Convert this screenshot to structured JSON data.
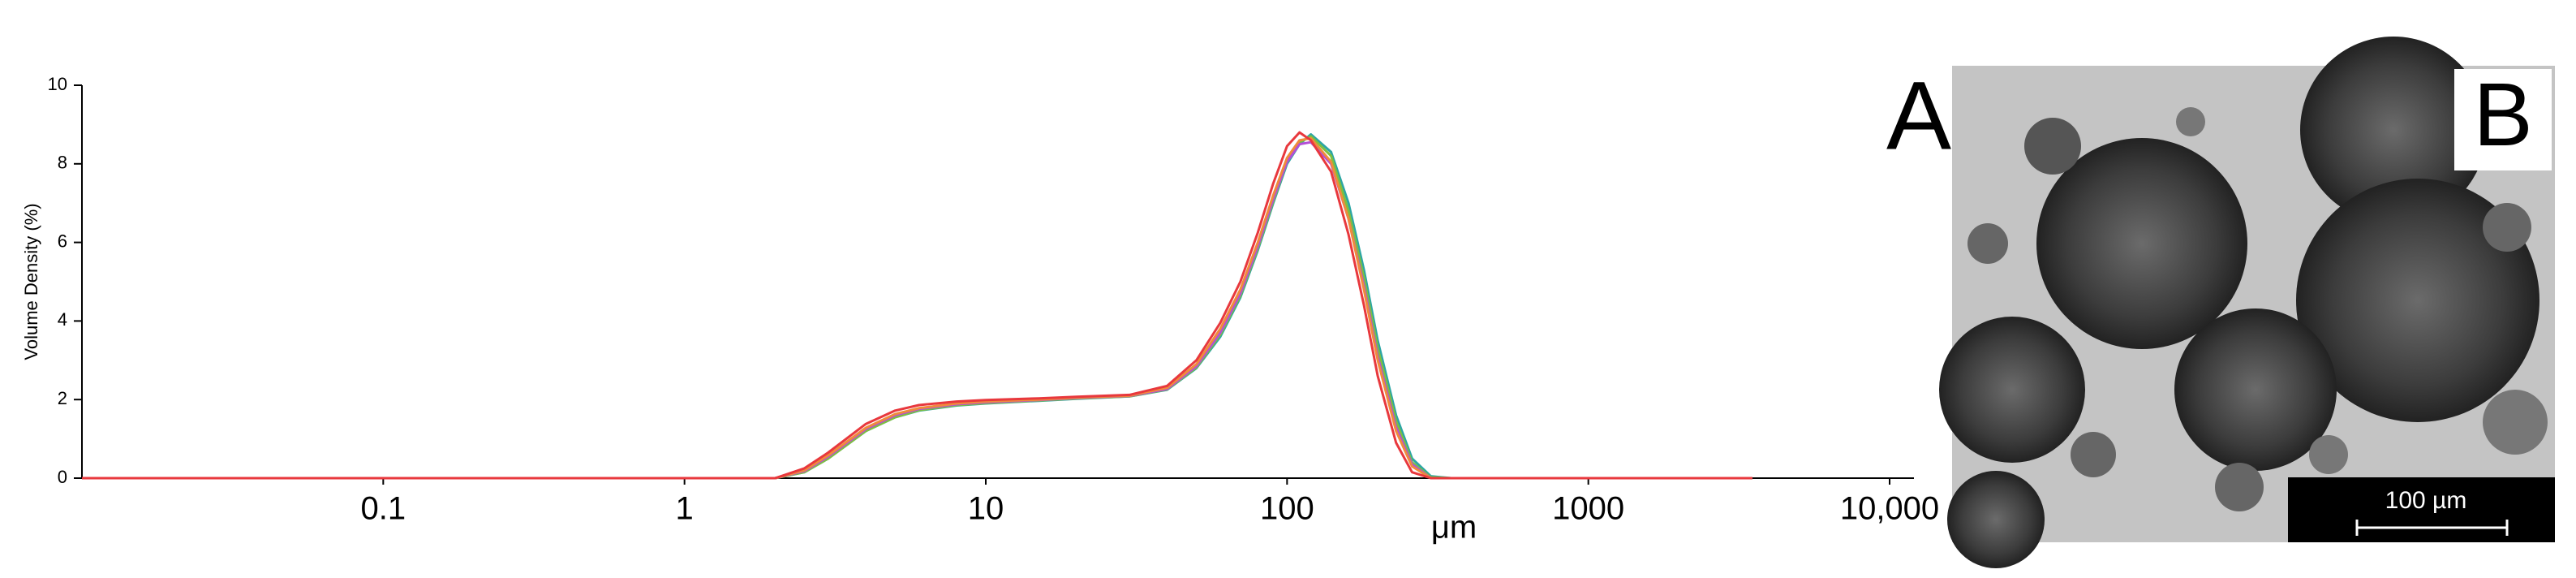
{
  "chart_data": {
    "type": "line",
    "x_label": "μm",
    "y_label": "Volume Density (%)",
    "log_x": true,
    "xlim": [
      0.01,
      10000
    ],
    "xticks": [
      0.1,
      1,
      10,
      100,
      1000,
      {
        "value": 10000,
        "label": "10,000"
      }
    ],
    "ylim": [
      0,
      10
    ],
    "yticks": [
      0,
      2,
      4,
      6,
      8,
      10
    ],
    "x": [
      0.01,
      1,
      2,
      2.5,
      3,
      4,
      5,
      6,
      8,
      10,
      15,
      20,
      30,
      40,
      50,
      60,
      70,
      80,
      90,
      100,
      110,
      120,
      140,
      160,
      180,
      200,
      230,
      260,
      300,
      350,
      1000,
      3500
    ],
    "series": [
      {
        "color": "#2ca6a4",
        "values": [
          0,
          0,
          0,
          0.15,
          0.5,
          1.2,
          1.55,
          1.72,
          1.85,
          1.9,
          1.97,
          2.02,
          2.08,
          2.25,
          2.8,
          3.6,
          4.6,
          5.8,
          7.0,
          8.0,
          8.5,
          8.75,
          8.3,
          7.0,
          5.3,
          3.5,
          1.6,
          0.5,
          0.05,
          0,
          0,
          0
        ]
      },
      {
        "color": "#7fbf3f",
        "values": [
          0,
          0,
          0,
          0.15,
          0.5,
          1.2,
          1.55,
          1.73,
          1.86,
          1.91,
          1.98,
          2.03,
          2.08,
          2.26,
          2.82,
          3.65,
          4.65,
          5.85,
          7.05,
          8.05,
          8.55,
          8.7,
          8.2,
          6.8,
          5.1,
          3.3,
          1.45,
          0.4,
          0.02,
          0,
          0,
          0
        ]
      },
      {
        "color": "#b44fd6",
        "values": [
          0,
          0,
          0,
          0.18,
          0.55,
          1.25,
          1.6,
          1.76,
          1.88,
          1.93,
          1.99,
          2.04,
          2.09,
          2.27,
          2.85,
          3.7,
          4.7,
          5.9,
          7.1,
          8.05,
          8.5,
          8.55,
          8.0,
          6.6,
          4.9,
          3.1,
          1.3,
          0.35,
          0,
          0,
          0,
          0
        ]
      },
      {
        "color": "#f08a3c",
        "values": [
          0,
          0,
          0,
          0.2,
          0.58,
          1.28,
          1.63,
          1.78,
          1.9,
          1.95,
          2.0,
          2.05,
          2.1,
          2.3,
          2.9,
          3.8,
          4.8,
          6.0,
          7.2,
          8.15,
          8.6,
          8.65,
          8.05,
          6.6,
          4.8,
          3.0,
          1.2,
          0.3,
          0,
          0,
          0,
          0
        ]
      },
      {
        "color": "#e8383d",
        "values": [
          0,
          0,
          0,
          0.25,
          0.65,
          1.38,
          1.72,
          1.86,
          1.95,
          1.99,
          2.03,
          2.07,
          2.12,
          2.35,
          3.0,
          3.95,
          5.0,
          6.25,
          7.5,
          8.45,
          8.8,
          8.6,
          7.8,
          6.2,
          4.4,
          2.6,
          0.9,
          0.15,
          0,
          0,
          0,
          0
        ]
      }
    ]
  },
  "panels": {
    "a_label": "A",
    "b_label": "B",
    "scale_bar": "100 µm"
  }
}
